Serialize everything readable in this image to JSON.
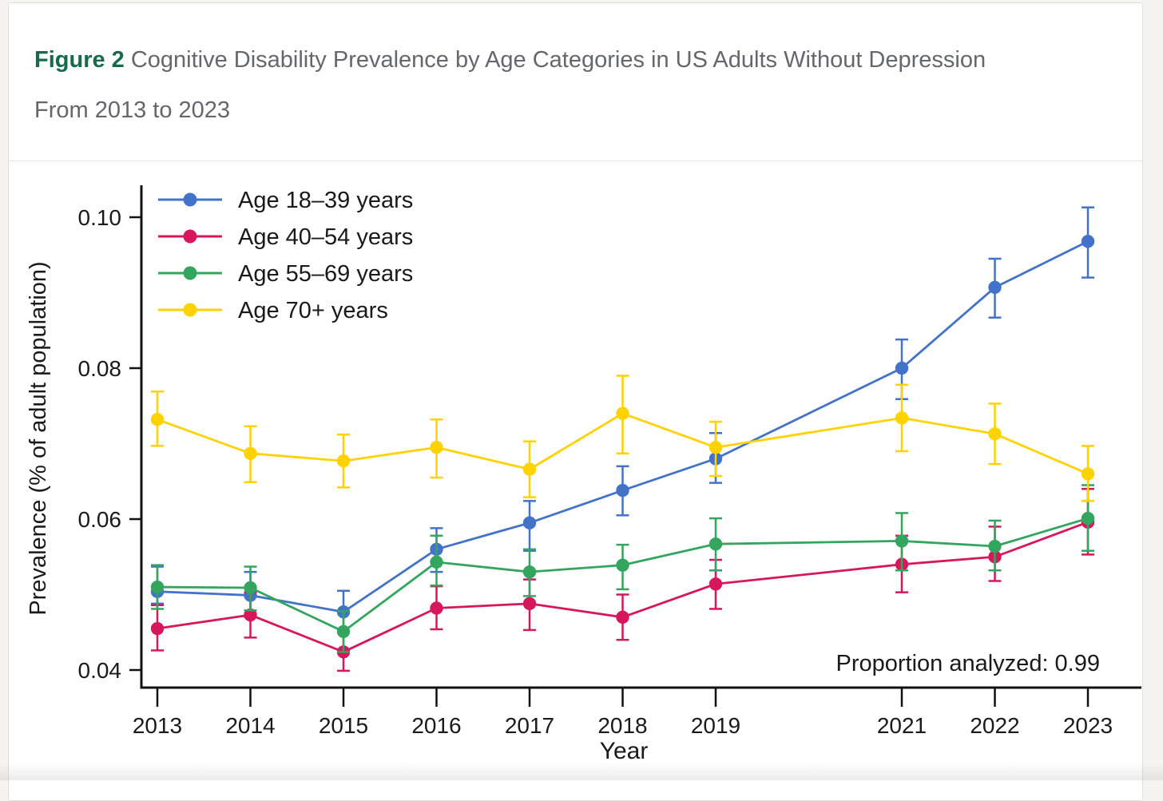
{
  "page": {
    "background_color": "#f6f4f1",
    "card_border_color": "#e3ded8"
  },
  "figure": {
    "label": "Figure 2",
    "label_color": "#176b4a",
    "title_line1": "Cognitive Disability Prevalence by Age Categories in US Adults Without Depression",
    "title_line2": "From 2013 to 2023",
    "title_color": "#64676b"
  },
  "chart_data": {
    "type": "line",
    "x": [
      2013,
      2014,
      2015,
      2016,
      2017,
      2018,
      2019,
      2021,
      2022,
      2023
    ],
    "x_missing_years": [
      2020
    ],
    "xlabel": "Year",
    "ylabel": "Prevalence (% of adult population)",
    "yticks": [
      0.04,
      0.06,
      0.08,
      0.1
    ],
    "ylim": [
      0.038,
      0.105
    ],
    "grid": false,
    "legend_position": "top-left",
    "error_bars": true,
    "annotation": "Proportion analyzed: 0.99",
    "series": [
      {
        "name": "Age 18–39 years",
        "color": "#4373C8",
        "values": [
          0.0504,
          0.0499,
          0.0477,
          0.056,
          0.0595,
          0.0638,
          0.068,
          0.08,
          0.0907,
          0.0968
        ],
        "ci_low": [
          0.0488,
          0.047,
          0.045,
          0.053,
          0.0558,
          0.0605,
          0.0648,
          0.0759,
          0.0867,
          0.092
        ],
        "ci_high": [
          0.0537,
          0.053,
          0.0505,
          0.0588,
          0.0624,
          0.067,
          0.0714,
          0.0838,
          0.0945,
          0.1013
        ]
      },
      {
        "name": "Age 40–54 years",
        "color": "#D6175C",
        "values": [
          0.0455,
          0.0473,
          0.0424,
          0.0482,
          0.0488,
          0.047,
          0.0514,
          0.054,
          0.055,
          0.0596
        ],
        "ci_low": [
          0.0426,
          0.0443,
          0.0399,
          0.0454,
          0.0453,
          0.044,
          0.0481,
          0.0503,
          0.0518,
          0.0553
        ],
        "ci_high": [
          0.0486,
          0.0503,
          0.045,
          0.0511,
          0.052,
          0.05,
          0.0546,
          0.0578,
          0.059,
          0.064
        ]
      },
      {
        "name": "Age 55–69 years",
        "color": "#34A55E",
        "values": [
          0.051,
          0.0509,
          0.0451,
          0.0543,
          0.053,
          0.0539,
          0.0567,
          0.0571,
          0.0564,
          0.0601
        ],
        "ci_low": [
          0.0481,
          0.0479,
          0.0424,
          0.0512,
          0.0498,
          0.0507,
          0.0532,
          0.0532,
          0.0532,
          0.0558
        ],
        "ci_high": [
          0.0539,
          0.0537,
          0.0478,
          0.0578,
          0.056,
          0.0566,
          0.0601,
          0.0608,
          0.0598,
          0.0645
        ]
      },
      {
        "name": "Age 70+ years",
        "color": "#FFD200",
        "values": [
          0.0732,
          0.0687,
          0.0677,
          0.0695,
          0.0666,
          0.074,
          0.0695,
          0.0734,
          0.0713,
          0.066
        ],
        "ci_low": [
          0.0697,
          0.0649,
          0.0642,
          0.0655,
          0.0629,
          0.0687,
          0.0657,
          0.069,
          0.0673,
          0.0624
        ],
        "ci_high": [
          0.0769,
          0.0723,
          0.0712,
          0.0732,
          0.0703,
          0.079,
          0.0729,
          0.0778,
          0.0753,
          0.0697
        ]
      }
    ]
  }
}
